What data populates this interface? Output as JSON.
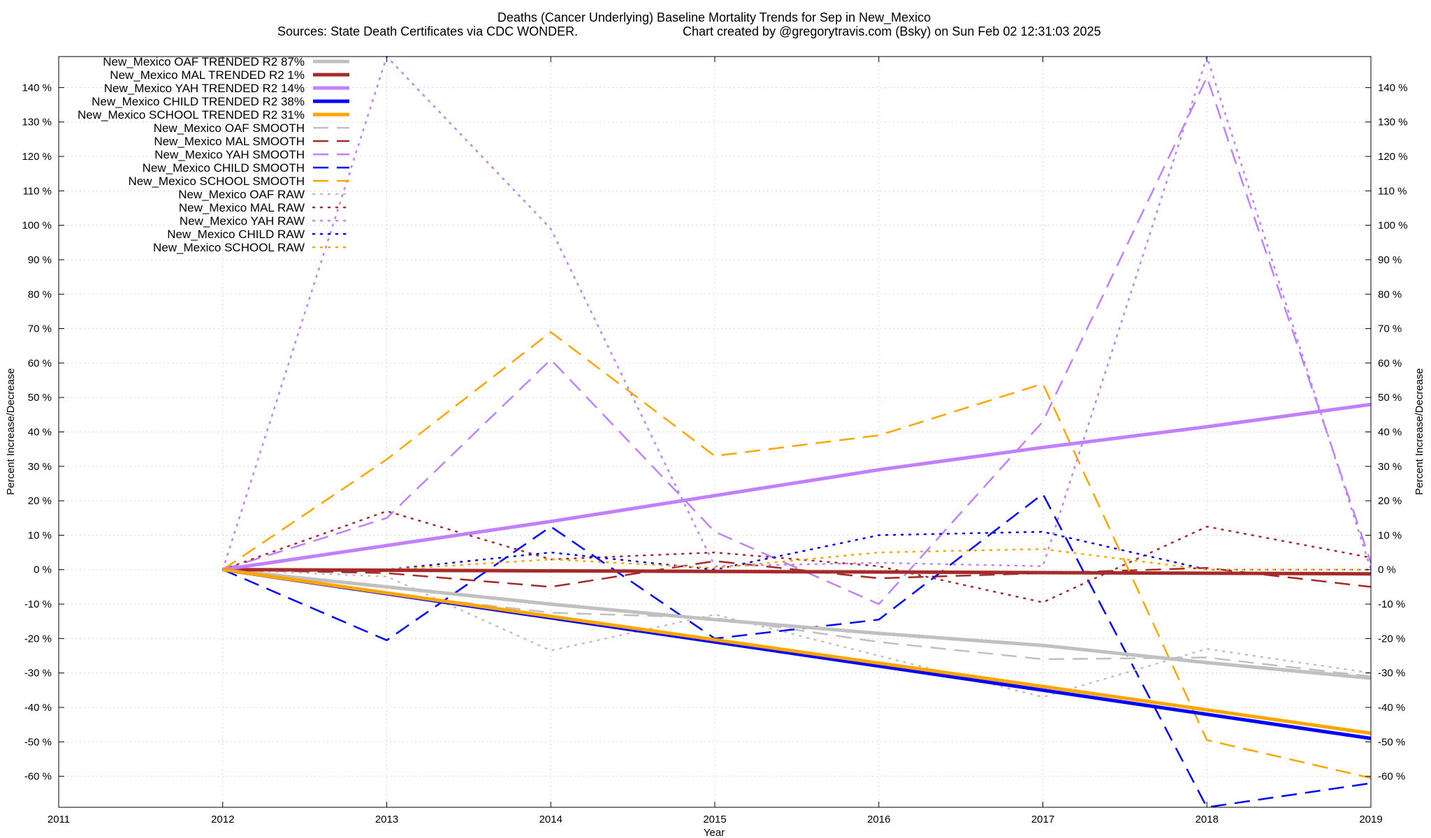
{
  "chart_data": {
    "type": "line",
    "title": "Deaths (Cancer Underlying)  Baseline Mortality Trends for Sep in New_Mexico",
    "subtitle_left": "Sources: State Death Certificates via CDC WONDER.",
    "subtitle_right": "Chart created by @gregorytravis.com (Bsky) on Sun Feb 02 12:31:03 2025",
    "xlabel": "Year",
    "ylabel": "Percent Increase/Decrease",
    "ylabel_right": "Percent Increase/Decrease",
    "xlim": [
      2011,
      2019
    ],
    "ylim": [
      -69,
      149
    ],
    "x_ticks": [
      2011,
      2012,
      2013,
      2014,
      2015,
      2016,
      2017,
      2018,
      2019
    ],
    "y_ticks": [
      -60,
      -50,
      -40,
      -30,
      -20,
      -10,
      0,
      10,
      20,
      30,
      40,
      50,
      60,
      70,
      80,
      90,
      100,
      110,
      120,
      130,
      140
    ],
    "y_tick_suffix": " %",
    "grid": true,
    "legend_position": "top-left",
    "series": [
      {
        "name": "New_Mexico OAF TRENDED R2  87%",
        "style": "solid",
        "color": "#c0c0c0",
        "x": [
          2012,
          2013,
          2014,
          2015,
          2016,
          2017,
          2018,
          2019
        ],
        "values": [
          0,
          -5,
          -10,
          -14.5,
          -18.5,
          -22,
          -27,
          -31.5
        ]
      },
      {
        "name": "New_Mexico MAL TRENDED R2   1%",
        "style": "solid",
        "color": "#a52a2a",
        "x": [
          2012,
          2019
        ],
        "values": [
          0,
          -1.2
        ]
      },
      {
        "name": "New_Mexico YAH TRENDED R2  14%",
        "style": "solid",
        "color": "#c080ff",
        "x": [
          2012,
          2013,
          2014,
          2015,
          2016,
          2017,
          2018,
          2019
        ],
        "values": [
          0,
          7,
          14,
          21.5,
          29,
          35.5,
          41.5,
          48
        ]
      },
      {
        "name": "New_Mexico CHILD TRENDED R2  38%",
        "style": "solid",
        "color": "#0000ff",
        "x": [
          2012,
          2019
        ],
        "values": [
          0,
          -49
        ]
      },
      {
        "name": "New_Mexico SCHOOL TRENDED R2  31%",
        "style": "solid",
        "color": "#ffa500",
        "x": [
          2012,
          2019
        ],
        "values": [
          0,
          -47.5
        ]
      },
      {
        "name": "New_Mexico OAF SMOOTH",
        "style": "dashed",
        "color": "#c0c0c0",
        "x": [
          2012,
          2013,
          2014,
          2015,
          2016,
          2017,
          2018,
          2019
        ],
        "values": [
          0,
          -7,
          -12.5,
          -14,
          -21,
          -26,
          -25.5,
          -31
        ]
      },
      {
        "name": "New_Mexico MAL SMOOTH",
        "style": "dashed",
        "color": "#a52a2a",
        "x": [
          2012,
          2013,
          2014,
          2015,
          2016,
          2017,
          2018,
          2019
        ],
        "values": [
          0,
          -1,
          -5,
          2.5,
          -2.5,
          -1,
          0.5,
          -5
        ]
      },
      {
        "name": "New_Mexico YAH SMOOTH",
        "style": "dashed",
        "color": "#c080ff",
        "x": [
          2012,
          2013,
          2014,
          2015,
          2016,
          2017,
          2018,
          2019
        ],
        "values": [
          0,
          15,
          61,
          11,
          -10,
          43,
          143,
          2
        ]
      },
      {
        "name": "New_Mexico CHILD SMOOTH",
        "style": "dashed",
        "color": "#0000ff",
        "x": [
          2012,
          2013,
          2014,
          2015,
          2016,
          2017,
          2018,
          2019
        ],
        "values": [
          0,
          -20.5,
          12.5,
          -20,
          -14.5,
          22,
          -69,
          -62
        ]
      },
      {
        "name": "New_Mexico SCHOOL SMOOTH",
        "style": "dashed",
        "color": "#ffa500",
        "x": [
          2012,
          2013,
          2014,
          2015,
          2016,
          2017,
          2018,
          2019
        ],
        "values": [
          0,
          32,
          69,
          33,
          39,
          54,
          -49.5,
          -60.5
        ]
      },
      {
        "name": "New_Mexico OAF RAW",
        "style": "dotted",
        "color": "#c0c0c0",
        "x": [
          2012,
          2013,
          2014,
          2015,
          2016,
          2017,
          2018,
          2019
        ],
        "values": [
          0,
          -2,
          -23.5,
          -13,
          -25,
          -37,
          -23,
          -30
        ]
      },
      {
        "name": "New_Mexico MAL RAW",
        "style": "dotted",
        "color": "#a52a2a",
        "x": [
          2012,
          2013,
          2014,
          2015,
          2016,
          2017,
          2018,
          2019
        ],
        "values": [
          0,
          17,
          3,
          5,
          1,
          -9.5,
          12.5,
          3.5
        ]
      },
      {
        "name": "New_Mexico YAH RAW",
        "style": "dotted",
        "color": "#c080ff",
        "x": [
          2012,
          2013,
          2014,
          2015,
          2016,
          2017,
          2018,
          2019
        ],
        "values": [
          0,
          149,
          99,
          1,
          2,
          1,
          149,
          0
        ]
      },
      {
        "name": "New_Mexico CHILD RAW",
        "style": "dotted",
        "color": "#0000ff",
        "x": [
          2012,
          2013,
          2014,
          2015,
          2016,
          2017,
          2018,
          2019
        ],
        "values": [
          0,
          0,
          5,
          0,
          10,
          11,
          0,
          0
        ]
      },
      {
        "name": "New_Mexico SCHOOL RAW",
        "style": "dotted",
        "color": "#ffa500",
        "x": [
          2012,
          2013,
          2014,
          2015,
          2016,
          2017,
          2018,
          2019
        ],
        "values": [
          0,
          0,
          3,
          0.5,
          5,
          6,
          0,
          0
        ]
      }
    ]
  }
}
